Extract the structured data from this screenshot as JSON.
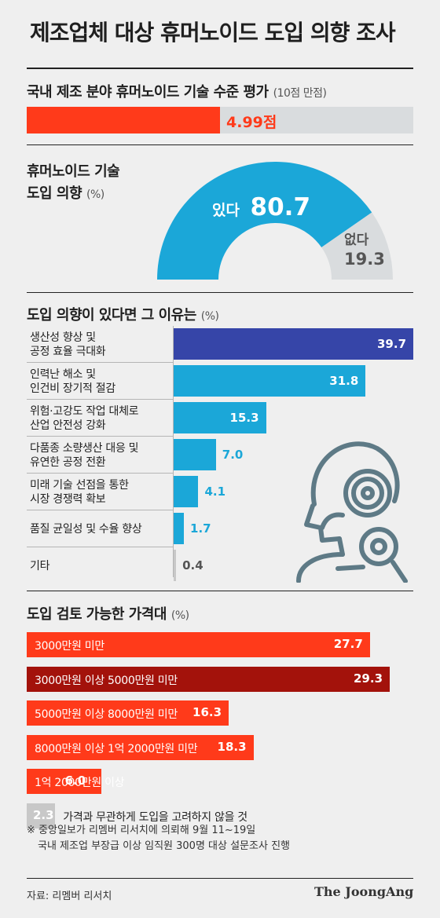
{
  "title": "제조업체 대상 휴머노이드 도입 의향 조사",
  "score": {
    "title": "국내 제조 분야 휴머노이드 기술 수준 평가",
    "unit": "(10점 만점)",
    "value": 4.99,
    "max": 10,
    "label": "4.99점"
  },
  "intent": {
    "title_line1": "휴머노이드 기술",
    "title_line2": "도입 의향",
    "unit": "(%)",
    "yes_label": "있다",
    "yes_value": "80.7",
    "no_label": "없다",
    "no_value": "19.3"
  },
  "reasons": {
    "title": "도입 의향이 있다면 그 이유는",
    "unit": "(%)",
    "items": [
      {
        "line1": "생산성 향상 및",
        "line2": "공정 효율 극대화",
        "value": 39.7,
        "label": "39.7",
        "color": "#3645a8"
      },
      {
        "line1": "인력난 해소 및",
        "line2": "인건비 장기적 절감",
        "value": 31.8,
        "label": "31.8",
        "color": "#1ba7d8"
      },
      {
        "line1": "위험·고강도 작업 대체로",
        "line2": "산업 안전성 강화",
        "value": 15.3,
        "label": "15.3",
        "color": "#1ba7d8"
      },
      {
        "line1": "다품종 소량생산 대응 및",
        "line2": "유연한 공정 전환",
        "value": 7.0,
        "label": "7.0",
        "color": "#1ba7d8"
      },
      {
        "line1": "미래 기술 선점을 통한",
        "line2": "시장 경쟁력 확보",
        "value": 4.1,
        "label": "4.1",
        "color": "#1ba7d8"
      },
      {
        "line1": "품질 균일성 및 수율 향상",
        "line2": "",
        "value": 1.7,
        "label": "1.7",
        "color": "#1ba7d8"
      },
      {
        "line1": "기타",
        "line2": "",
        "value": 0.4,
        "label": "0.4",
        "color": "#c8c8c8"
      }
    ]
  },
  "prices": {
    "title": "도입 검토 가능한 가격대",
    "unit": "(%)",
    "items": [
      {
        "label": "3000만원 미만",
        "value": 27.7,
        "value_label": "27.7",
        "color": "#ff3a1a"
      },
      {
        "label": "3000만원 이상 5000만원 미만",
        "value": 29.3,
        "value_label": "29.3",
        "color": "#a3120b"
      },
      {
        "label": "5000만원 이상 8000만원 미만",
        "value": 16.3,
        "value_label": "16.3",
        "color": "#ff3a1a"
      },
      {
        "label": "8000만원 이상 1억 2000만원 미만",
        "value": 18.3,
        "value_label": "18.3",
        "color": "#ff3a1a"
      },
      {
        "label": "1억 2000만원 이상",
        "value": 6.0,
        "value_label": "6.0",
        "color": "#ff3a1a"
      },
      {
        "label": "가격과 무관하게 도입을 고려하지 않을 것",
        "value": 2.3,
        "value_label": "2.3",
        "color": "#c8c8c8"
      }
    ]
  },
  "note_line1": "※ 중앙일보가 리멤버 리서치에 의뢰해 9월 11~19일",
  "note_line2": "국내 제조업 부장급 이상 임직원 300명 대상 설문조사 진행",
  "source": "자료: 리멤버 리서치",
  "brand": "The JoongAng",
  "chart_data": [
    {
      "type": "bar",
      "title": "국내 제조 분야 휴머노이드 기술 수준 평가",
      "categories": [
        "평가"
      ],
      "values": [
        4.99
      ],
      "ylim": [
        0,
        10
      ]
    },
    {
      "type": "pie",
      "title": "휴머노이드 기술 도입 의향",
      "categories": [
        "있다",
        "없다"
      ],
      "values": [
        80.7,
        19.3
      ]
    },
    {
      "type": "bar",
      "title": "도입 의향이 있다면 그 이유는",
      "categories": [
        "생산성 향상 및 공정 효율 극대화",
        "인력난 해소 및 인건비 장기적 절감",
        "위험·고강도 작업 대체로 산업 안전성 강화",
        "다품종 소량생산 대응 및 유연한 공정 전환",
        "미래 기술 선점을 통한 시장 경쟁력 확보",
        "품질 균일성 및 수율 향상",
        "기타"
      ],
      "values": [
        39.7,
        31.8,
        15.3,
        7.0,
        4.1,
        1.7,
        0.4
      ]
    },
    {
      "type": "bar",
      "title": "도입 검토 가능한 가격대",
      "categories": [
        "3000만원 미만",
        "3000만원 이상 5000만원 미만",
        "5000만원 이상 8000만원 미만",
        "8000만원 이상 1억 2000만원 미만",
        "1억 2000만원 이상",
        "가격과 무관하게 도입을 고려하지 않을 것"
      ],
      "values": [
        27.7,
        29.3,
        16.3,
        18.3,
        6.0,
        2.3
      ]
    }
  ]
}
